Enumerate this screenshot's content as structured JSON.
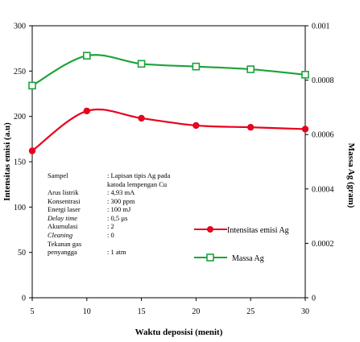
{
  "chart_data": {
    "type": "line",
    "x": [
      5,
      10,
      15,
      20,
      25,
      30
    ],
    "xlabel": "Waktu deposisi (menit)",
    "xlim": [
      5,
      30
    ],
    "xticks": [
      "5",
      "10",
      "15",
      "20",
      "25",
      "30"
    ],
    "y_left": {
      "label": "Intensitas emisi (a.u)",
      "lim": [
        0,
        300
      ],
      "ticks": [
        "0",
        "50",
        "100",
        "150",
        "200",
        "250",
        "300"
      ]
    },
    "y_right": {
      "label": "Massa Ag (gram)",
      "lim": [
        0,
        0.001
      ],
      "ticks": [
        "0",
        "0.0002",
        "0.0004",
        "0.0006",
        "0.0008",
        "0.001"
      ]
    },
    "series": [
      {
        "name": "Intensitas emisi Ag",
        "axis": "left",
        "marker": "circle",
        "color": "#e8001c",
        "values": [
          162,
          206,
          198,
          190,
          188,
          186
        ]
      },
      {
        "name": "Massa Ag",
        "axis": "right",
        "marker": "square",
        "color": "#1ba33a",
        "values": [
          0.00078,
          0.00089,
          0.00086,
          0.00085,
          0.00084,
          0.00082
        ]
      }
    ],
    "legend_placement": "right-middle",
    "grid": false,
    "annotation": [
      {
        "key": "Sampel",
        "value": ": Lapisan tipis Ag pada katoda lempengan Cu",
        "italic": false
      },
      {
        "key": "Arus listrik",
        "value": ": 4,93 mA",
        "italic": false
      },
      {
        "key": "Konsentrasi",
        "value": ": 300 ppm",
        "italic": false
      },
      {
        "key": "Energi laser",
        "value": ": 100 mJ",
        "italic": false
      },
      {
        "key": "Delay time",
        "value": ": 0,5 µs",
        "italic": true
      },
      {
        "key": "Akumulasi",
        "value": ": 2",
        "italic": false
      },
      {
        "key": "Cleaning",
        "value": ": 0",
        "italic": true
      },
      {
        "key": "Tekanan gas penyangga",
        "value": ": 1 atm",
        "italic": false
      }
    ]
  }
}
